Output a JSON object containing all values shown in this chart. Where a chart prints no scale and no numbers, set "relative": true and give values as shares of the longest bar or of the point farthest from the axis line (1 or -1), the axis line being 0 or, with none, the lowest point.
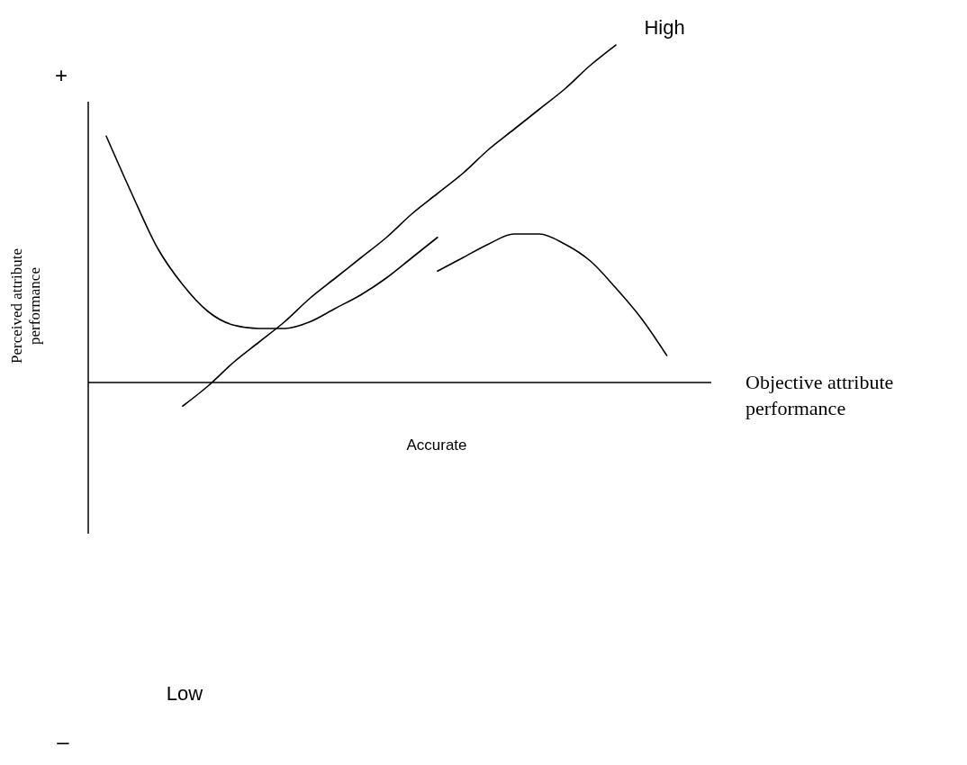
{
  "chart_data": {
    "type": "line",
    "relative": true,
    "xlabel": "Objective attribute performance",
    "ylabel": "Perceived attribute performance",
    "categories": [
      null,
      null,
      null,
      null,
      null,
      null,
      null,
      null,
      null,
      null,
      null,
      null,
      null,
      null,
      null,
      null,
      null,
      null,
      null,
      null,
      null,
      null,
      null
    ],
    "series": [
      {
        "color": "#000000",
        "values": [
          0.73,
          0.56,
          0.4,
          0.29,
          0.21,
          0.17,
          0.16,
          0.16,
          0.18,
          0.22,
          0.26,
          0.31,
          0.37,
          0.43,
          null,
          null,
          null,
          null,
          null,
          null,
          null,
          null,
          null
        ]
      },
      {
        "color": "#000000",
        "values": [
          null,
          null,
          null,
          null,
          null,
          null,
          null,
          null,
          null,
          null,
          null,
          null,
          null,
          0.33,
          0.37,
          0.41,
          0.44,
          0.44,
          0.41,
          0.36,
          0.28,
          0.19,
          0.08
        ]
      },
      {
        "color": "#000000",
        "values": [
          null,
          null,
          null,
          -0.07,
          -0.01,
          0.06,
          0.12,
          0.18,
          0.25,
          0.31,
          0.37,
          0.43,
          0.5,
          0.56,
          0.62,
          0.69,
          0.75,
          0.81,
          0.87,
          0.94,
          1.0,
          null,
          null
        ]
      }
    ],
    "annotations": [
      "+",
      "High",
      "Accurate",
      "Low",
      "–"
    ]
  }
}
